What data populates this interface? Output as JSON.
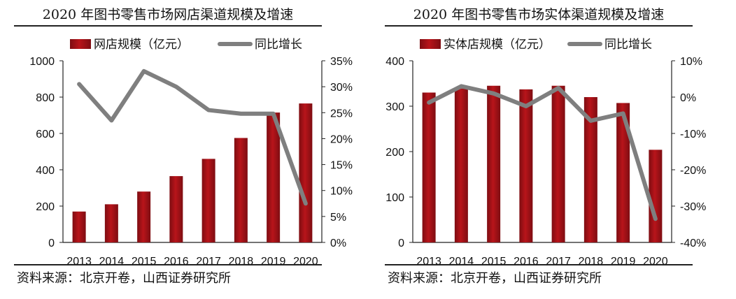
{
  "colors": {
    "bar": "#b8141a",
    "bar_dark": "#7e0d12",
    "line": "#7f7f7f",
    "axis": "#222222"
  },
  "source_text": "资料来源：北京开卷，山西证券研究所",
  "chart_data": [
    {
      "type": "bar",
      "title": "2020 年图书零售市场网店渠道规模及增速",
      "categories": [
        "2013",
        "2014",
        "2015",
        "2016",
        "2017",
        "2018",
        "2019",
        "2020"
      ],
      "series": [
        {
          "name": "网店规模（亿元）",
          "type": "bar",
          "axis": "left",
          "values": [
            170,
            210,
            280,
            365,
            460,
            575,
            715,
            765
          ]
        },
        {
          "name": "同比增长",
          "type": "line",
          "axis": "right",
          "values": [
            30.5,
            23.5,
            33.0,
            30.0,
            25.5,
            24.8,
            24.8,
            7.5
          ]
        }
      ],
      "ylim_left": [
        0,
        1000
      ],
      "yticks_left": [
        "0",
        "200",
        "400",
        "600",
        "800",
        "1000"
      ],
      "ylim_right": [
        0,
        35
      ],
      "yticks_right": [
        "0%",
        "5%",
        "10%",
        "15%",
        "20%",
        "25%",
        "30%",
        "35%"
      ],
      "legend": [
        "网店规模（亿元）",
        "同比增长"
      ]
    },
    {
      "type": "bar",
      "title": "2020 年图书零售市场实体渠道规模及增速",
      "categories": [
        "2013",
        "2014",
        "2015",
        "2016",
        "2017",
        "2018",
        "2019",
        "2020"
      ],
      "series": [
        {
          "name": "实体店规模（亿元）",
          "type": "bar",
          "axis": "left",
          "values": [
            330,
            340,
            345,
            337,
            345,
            320,
            307,
            204
          ]
        },
        {
          "name": "同比增长",
          "type": "line",
          "axis": "right",
          "values": [
            -1.5,
            3.0,
            1.0,
            -2.5,
            2.5,
            -6.5,
            -4.5,
            -33.5
          ]
        }
      ],
      "ylim_left": [
        0,
        400
      ],
      "yticks_left": [
        "0",
        "100",
        "200",
        "300",
        "400"
      ],
      "ylim_right": [
        -40,
        10
      ],
      "yticks_right": [
        "-40%",
        "-30%",
        "-20%",
        "-10%",
        "0%",
        "10%"
      ],
      "legend": [
        "实体店规模（亿元）",
        "同比增长"
      ]
    }
  ]
}
